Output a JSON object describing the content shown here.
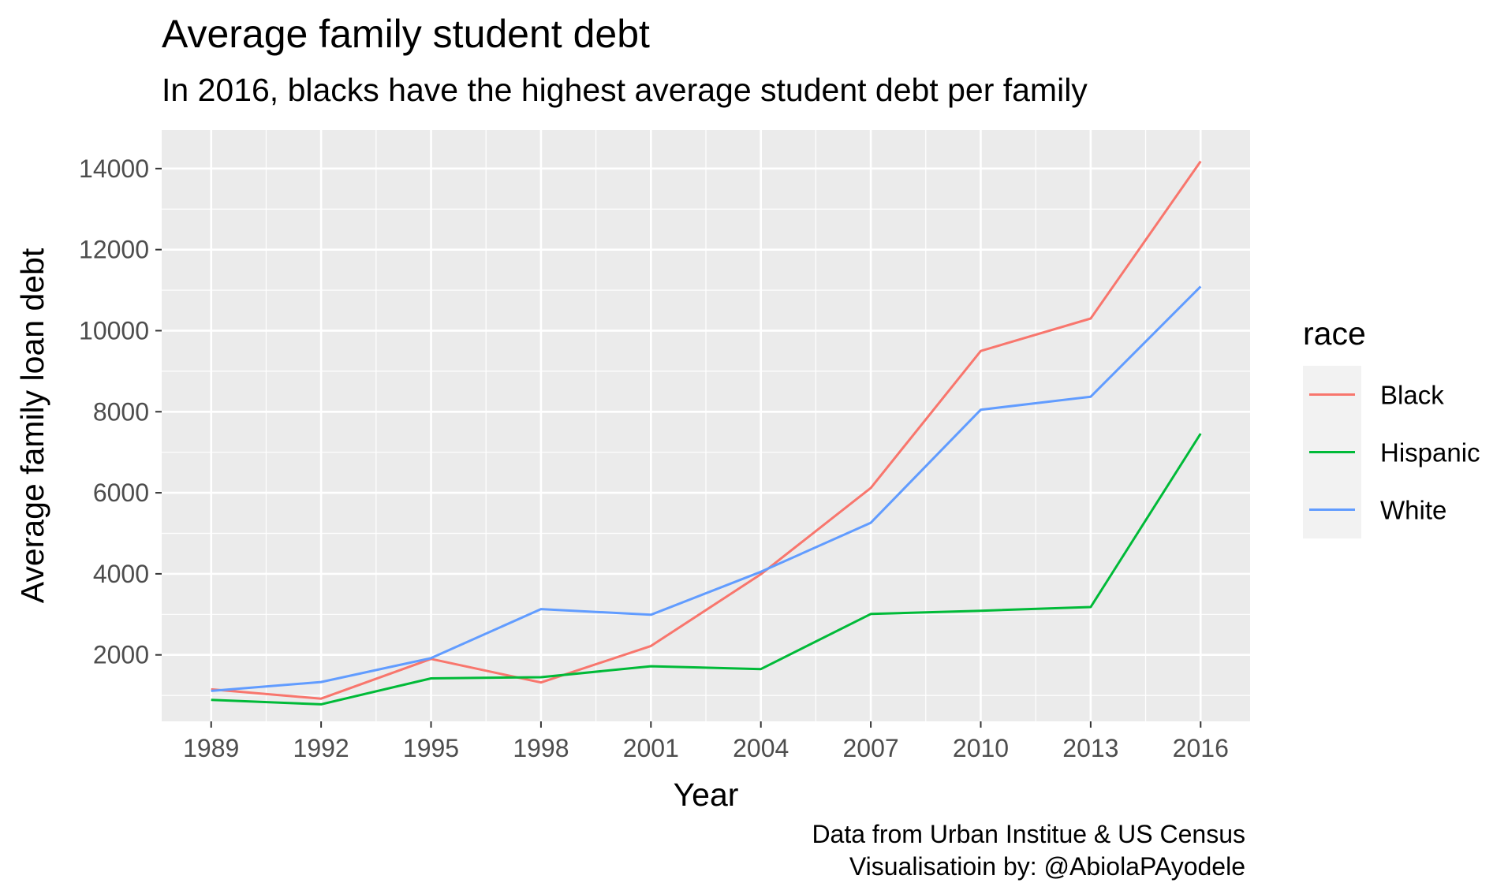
{
  "chart_data": {
    "type": "line",
    "title": "Average family student debt",
    "subtitle": "In 2016, blacks have the highest average student debt per family",
    "xlabel": "Year",
    "ylabel": "Average family loan debt",
    "x": [
      1989,
      1992,
      1995,
      1998,
      2001,
      2004,
      2007,
      2010,
      2013,
      2016
    ],
    "x_ticks": [
      "1989",
      "1992",
      "1995",
      "1998",
      "2001",
      "2004",
      "2007",
      "2010",
      "2013",
      "2016"
    ],
    "y_ticks": [
      "2000",
      "4000",
      "6000",
      "8000",
      "10000",
      "12000",
      "14000"
    ],
    "xlim": [
      1987.65,
      2017.35
    ],
    "ylim": [
      360,
      14950
    ],
    "grid": true,
    "legend_title": "race",
    "legend_position": "right",
    "series": [
      {
        "name": "Black",
        "color": "#F8766D",
        "values": [
          1150,
          920,
          1900,
          1320,
          2220,
          3990,
          6120,
          9500,
          10300,
          14180
        ]
      },
      {
        "name": "Hispanic",
        "color": "#00BA38",
        "values": [
          890,
          780,
          1420,
          1450,
          1720,
          1650,
          3010,
          3090,
          3180,
          7460
        ]
      },
      {
        "name": "White",
        "color": "#619CFF",
        "values": [
          1110,
          1330,
          1920,
          3130,
          2990,
          4050,
          5260,
          8050,
          8370,
          11090
        ]
      }
    ],
    "caption": [
      "Data from Urban Institue & US Census",
      "Visualisatioin by: @AbiolaPAyodele"
    ]
  }
}
